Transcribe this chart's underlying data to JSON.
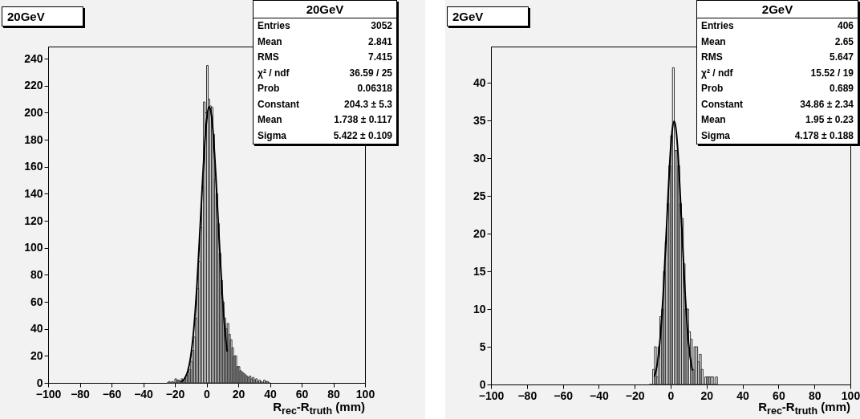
{
  "chart_data": [
    {
      "type": "histogram",
      "title": "20GeV",
      "xlabel": "R$_{rec}$-R$_{truth}$ (mm)",
      "bins": [
        -25,
        -24,
        -23,
        -22,
        -21,
        -20,
        -19,
        -18,
        -17,
        -16,
        -15,
        -14,
        -13,
        -12,
        -11,
        -10,
        -9,
        -8,
        -7,
        -6,
        -5,
        -4,
        -3,
        -2,
        -1,
        0,
        1,
        2,
        3,
        4,
        5,
        6,
        7,
        8,
        9,
        10,
        11,
        12,
        13,
        14,
        15,
        16,
        17,
        18,
        19,
        20,
        21,
        22,
        23,
        24,
        25,
        26,
        27,
        28,
        29,
        30,
        31,
        32,
        33,
        34,
        35,
        36,
        37,
        38,
        39,
        40
      ],
      "values": [
        0,
        1,
        0,
        1,
        0,
        3,
        2,
        2,
        1,
        3,
        2,
        4,
        6,
        8,
        10,
        16,
        24,
        34,
        48,
        70,
        90,
        115,
        146,
        208,
        200,
        235,
        210,
        205,
        204,
        184,
        151,
        140,
        118,
        96,
        76,
        60,
        48,
        40,
        44,
        36,
        32,
        26,
        20,
        20,
        12,
        12,
        9,
        8,
        7,
        6,
        5,
        4,
        5,
        3,
        4,
        2,
        3,
        1,
        2,
        1,
        0,
        2,
        1,
        1,
        0
      ],
      "series": [
        {
          "type": "line",
          "color": "#000000",
          "x": [
            -16,
            -14,
            -12,
            -10,
            -8,
            -6,
            -4,
            -2,
            -1,
            0,
            1,
            1.7,
            3,
            4,
            5,
            6,
            8,
            10,
            12,
            13
          ],
          "values": [
            1.0,
            3.0,
            8.2,
            19.6,
            40.7,
            73.7,
            116.7,
            161,
            179.8,
            194,
            202.4,
            204.3,
            198.8,
            187.3,
            170.5,
            150,
            105,
            64,
            34,
            23.6
          ]
        }
      ],
      "xlim": [
        -100,
        100
      ],
      "xticks": [
        -100,
        -80,
        -60,
        -40,
        -20,
        0,
        20,
        40,
        60,
        80,
        100
      ],
      "ylim": [
        0,
        249
      ],
      "yticks": [
        0,
        20,
        40,
        60,
        80,
        100,
        120,
        140,
        160,
        180,
        200,
        220,
        240
      ],
      "grid": false,
      "annotations": [
        "20GeV",
        "Entries",
        "3052",
        "Mean",
        "2.841",
        "RMS",
        "7.415",
        "χ² / ndf",
        "36.59 / 25",
        "Prob",
        "0.06318",
        "Constant",
        "204.3 ± 5.3",
        "Mean",
        "1.738 ± 0.117",
        "Sigma",
        "5.422 ± 0.109"
      ]
    },
    {
      "type": "histogram",
      "title": "2GeV",
      "xlabel": "R$_{rec}$-R$_{truth}$ (mm)",
      "bins": [
        -12,
        -11,
        -10,
        -9,
        -8,
        -7,
        -6,
        -5,
        -4,
        -3,
        -2,
        -1,
        0,
        1,
        2,
        3,
        4,
        5,
        6,
        7,
        8,
        9,
        10,
        11,
        12,
        13,
        14,
        15,
        16,
        17,
        18,
        19,
        20,
        21,
        22,
        23,
        24,
        25,
        26
      ],
      "values": [
        0,
        0,
        2,
        5,
        1,
        5,
        9,
        10,
        15,
        19,
        24,
        29,
        33,
        42,
        31,
        31,
        29,
        24,
        22,
        16,
        10,
        10,
        7,
        6,
        2,
        5,
        5,
        3,
        4,
        2,
        0,
        1,
        1,
        1,
        1,
        1,
        0,
        1
      ],
      "series": [
        {
          "type": "line",
          "color": "#000000",
          "x": [
            -9,
            -8,
            -6,
            -4,
            -2,
            0,
            1,
            1.95,
            3,
            4,
            6,
            8,
            10,
            12
          ],
          "values": [
            1.1,
            2.0,
            5.7,
            12.6,
            22.3,
            31.3,
            34.0,
            34.9,
            33.8,
            30.9,
            21.8,
            12.2,
            5.4,
            1.9
          ]
        }
      ],
      "xlim": [
        -100,
        100
      ],
      "xticks": [
        -100,
        -80,
        -60,
        -40,
        -20,
        0,
        20,
        40,
        60,
        80,
        100
      ],
      "ylim": [
        0,
        44.8
      ],
      "yticks": [
        0,
        5,
        10,
        15,
        20,
        25,
        30,
        35,
        40
      ],
      "grid": false,
      "annotations": [
        "2GeV",
        "Entries",
        "406",
        "Mean",
        "2.65",
        "RMS",
        "5.647",
        "χ² / ndf",
        "15.52 / 19",
        "Prob",
        "0.689",
        "Constant",
        "34.86 ± 2.34",
        "Mean",
        "1.95 ± 0.23",
        "Sigma",
        "4.178 ± 0.188"
      ]
    }
  ]
}
